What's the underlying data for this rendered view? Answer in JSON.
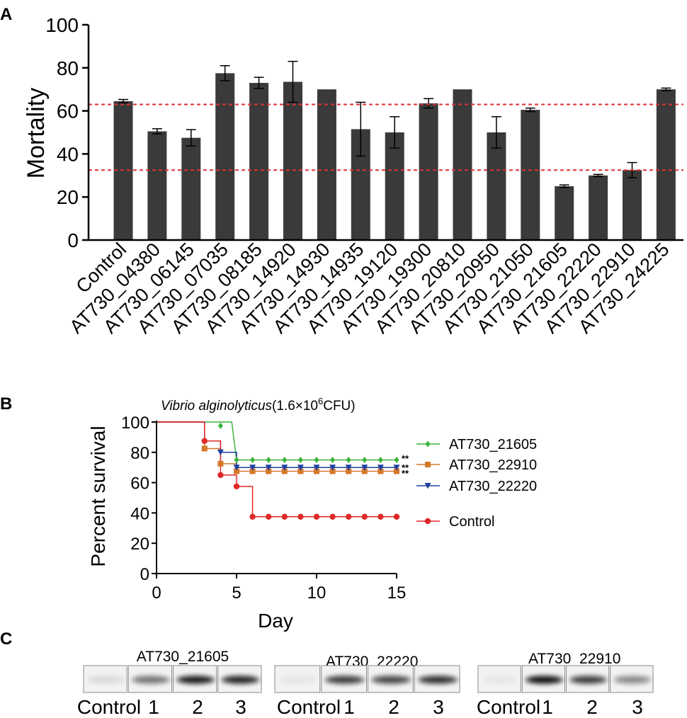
{
  "panels": {
    "a": "A",
    "b": "B",
    "c": "C"
  },
  "chart_data": [
    {
      "type": "bar",
      "panel": "A",
      "ylabel": "Mortality",
      "ylim": [
        0,
        100
      ],
      "yticks": [
        "0",
        "20",
        "40",
        "60",
        "80",
        "100"
      ],
      "categories": [
        "Control",
        "AT730_04380",
        "AT730_06145",
        "AT730_07035",
        "AT730_08185",
        "AT730_14920",
        "AT730_14930",
        "AT730_14935",
        "AT730_19120",
        "AT730_19300",
        "AT730_20810",
        "AT730_20950",
        "AT730_21050",
        "AT730_21605",
        "AT730_22220",
        "AT730_22910",
        "AT730_24225"
      ],
      "values": [
        64.5,
        50.5,
        47.5,
        77.5,
        73,
        73.5,
        70,
        51.5,
        50,
        63.5,
        70,
        50,
        60.5,
        25,
        30,
        32.5,
        70
      ],
      "errors": [
        0.8,
        1.2,
        3.8,
        3.5,
        2.6,
        9.5,
        0,
        12.5,
        7.3,
        2.2,
        0,
        7.3,
        0.8,
        0.6,
        0.5,
        3.5,
        0.6
      ],
      "reference_lines": [
        63,
        32.5
      ],
      "color": "#3a3a3a",
      "reference_color": "#e03030"
    },
    {
      "type": "line",
      "panel": "B",
      "title_italic": "Vibrio alginolyticus",
      "title_rest": "(1.6×10",
      "title_sup": "6",
      "title_end": "CFU)",
      "xlabel": "Day",
      "ylabel": "Percent survival",
      "xlim": [
        0,
        15
      ],
      "ylim": [
        0,
        100
      ],
      "xticks": [
        "0",
        "5",
        "10",
        "15"
      ],
      "yticks": [
        "0",
        "20",
        "40",
        "60",
        "80",
        "100"
      ],
      "significance": [
        "**",
        "**",
        "**"
      ],
      "series": [
        {
          "name": "AT730_21605",
          "color": "#3cb43c",
          "marker": "diamond",
          "steps": [
            [
              0,
              100
            ],
            [
              4.7,
              100
            ],
            [
              5,
              75
            ],
            [
              15,
              75
            ]
          ],
          "points": [
            [
              4,
              97.5
            ],
            [
              5,
              75
            ],
            [
              6,
              75
            ],
            [
              7,
              75
            ],
            [
              8,
              75
            ],
            [
              9,
              75
            ],
            [
              10,
              75
            ],
            [
              11,
              75
            ],
            [
              12,
              75
            ],
            [
              13,
              75
            ],
            [
              14,
              75
            ],
            [
              15,
              75
            ]
          ]
        },
        {
          "name": "AT730_22910",
          "color": "#d4782a",
          "marker": "square",
          "steps": [
            [
              0,
              100
            ],
            [
              3,
              100
            ],
            [
              3,
              82.5
            ],
            [
              4,
              82.5
            ],
            [
              4,
              72.5
            ],
            [
              5,
              72.5
            ],
            [
              5,
              67.5
            ],
            [
              15,
              67.5
            ]
          ],
          "points": [
            [
              3,
              82.5
            ],
            [
              4,
              72.5
            ],
            [
              5,
              67.5
            ],
            [
              6,
              67.5
            ],
            [
              7,
              67.5
            ],
            [
              8,
              67.5
            ],
            [
              9,
              67.5
            ],
            [
              10,
              67.5
            ],
            [
              11,
              67.5
            ],
            [
              12,
              67.5
            ],
            [
              13,
              67.5
            ],
            [
              14,
              67.5
            ],
            [
              15,
              67.5
            ]
          ]
        },
        {
          "name": "AT730_22220",
          "color": "#2040a0",
          "marker": "triangle-down",
          "steps": [
            [
              0,
              100
            ],
            [
              3,
              100
            ],
            [
              3,
              87.5
            ],
            [
              4,
              87.5
            ],
            [
              4,
              80
            ],
            [
              5,
              80
            ],
            [
              5,
              70
            ],
            [
              15,
              70
            ]
          ],
          "points": [
            [
              4,
              80
            ],
            [
              5,
              70
            ],
            [
              6,
              70
            ],
            [
              7,
              70
            ],
            [
              8,
              70
            ],
            [
              9,
              70
            ],
            [
              10,
              70
            ],
            [
              11,
              70
            ],
            [
              12,
              70
            ],
            [
              13,
              70
            ],
            [
              14,
              70
            ],
            [
              15,
              70
            ]
          ]
        },
        {
          "name": "Control",
          "color": "#e02828",
          "marker": "circle",
          "steps": [
            [
              0,
              100
            ],
            [
              3,
              100
            ],
            [
              3,
              87.5
            ],
            [
              4,
              87.5
            ],
            [
              4,
              65
            ],
            [
              5,
              65
            ],
            [
              5,
              57.5
            ],
            [
              6,
              57.5
            ],
            [
              6,
              37.5
            ],
            [
              15,
              37.5
            ]
          ],
          "points": [
            [
              3,
              87.5
            ],
            [
              4,
              65
            ],
            [
              5,
              57.5
            ],
            [
              6,
              37.5
            ],
            [
              7,
              37.5
            ],
            [
              8,
              37.5
            ],
            [
              9,
              37.5
            ],
            [
              10,
              37.5
            ],
            [
              11,
              37.5
            ],
            [
              12,
              37.5
            ],
            [
              13,
              37.5
            ],
            [
              14,
              37.5
            ],
            [
              15,
              37.5
            ]
          ]
        }
      ]
    }
  ],
  "blots": {
    "panel": "C",
    "groups": [
      {
        "title": "AT730_21605",
        "lanes": [
          "Control",
          "1",
          "2",
          "3"
        ]
      },
      {
        "title": "AT730_22220",
        "lanes": [
          "Control",
          "1",
          "2",
          "3"
        ]
      },
      {
        "title": "AT730_22910",
        "lanes": [
          "Control",
          "1",
          "2",
          "3"
        ]
      }
    ]
  }
}
